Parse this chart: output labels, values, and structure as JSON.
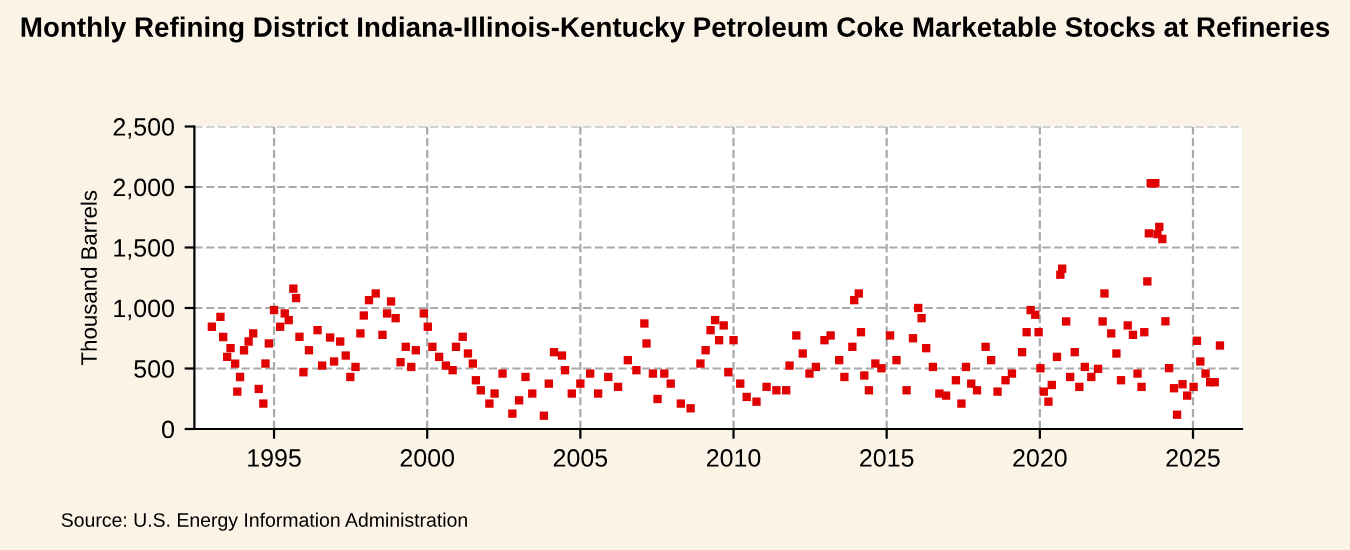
{
  "chart_data": {
    "type": "scatter",
    "title": "Monthly Refining District Indiana-Illinois-Kentucky Petroleum Coke Marketable Stocks at Refineries",
    "ylabel": "Thousand Barrels",
    "annotations": [
      "Source: U.S. Energy Information Administration"
    ],
    "x": [
      1992.97,
      1993.25,
      1993.34,
      1993.47,
      1993.58,
      1993.73,
      1993.8,
      1993.89,
      1994.02,
      1994.17,
      1994.32,
      1994.5,
      1994.65,
      1994.72,
      1994.83,
      1995.0,
      1995.2,
      1995.35,
      1995.48,
      1995.63,
      1995.72,
      1995.83,
      1995.96,
      1996.14,
      1996.42,
      1996.57,
      1996.83,
      1996.96,
      1997.16,
      1997.34,
      1997.49,
      1997.66,
      1997.82,
      1997.93,
      1998.1,
      1998.32,
      1998.54,
      1998.69,
      1998.82,
      1998.97,
      1999.13,
      1999.3,
      1999.48,
      1999.63,
      1999.89,
      2000.02,
      2000.17,
      2000.39,
      2000.61,
      2000.83,
      2000.94,
      2001.16,
      2001.33,
      2001.49,
      2001.59,
      2001.75,
      2002.03,
      2002.2,
      2002.46,
      2002.78,
      2003.0,
      2003.21,
      2003.43,
      2003.81,
      2003.97,
      2004.14,
      2004.4,
      2004.5,
      2004.72,
      2005.0,
      2005.32,
      2005.58,
      2005.91,
      2006.23,
      2006.55,
      2006.83,
      2007.09,
      2007.16,
      2007.37,
      2007.52,
      2007.74,
      2007.95,
      2008.28,
      2008.6,
      2008.92,
      2009.09,
      2009.25,
      2009.4,
      2009.53,
      2009.68,
      2009.83,
      2010.0,
      2010.22,
      2010.43,
      2010.75,
      2011.08,
      2011.4,
      2011.72,
      2011.83,
      2012.05,
      2012.26,
      2012.48,
      2012.69,
      2012.97,
      2013.17,
      2013.45,
      2013.62,
      2013.88,
      2013.94,
      2014.09,
      2014.16,
      2014.27,
      2014.42,
      2014.63,
      2014.83,
      2015.11,
      2015.32,
      2015.65,
      2015.86,
      2016.03,
      2016.14,
      2016.29,
      2016.51,
      2016.72,
      2016.94,
      2017.26,
      2017.44,
      2017.59,
      2017.76,
      2017.95,
      2018.23,
      2018.41,
      2018.62,
      2018.88,
      2019.09,
      2019.42,
      2019.57,
      2019.7,
      2019.85,
      2019.96,
      2020.02,
      2020.13,
      2020.28,
      2020.39,
      2020.56,
      2020.67,
      2020.73,
      2020.86,
      2020.99,
      2021.14,
      2021.29,
      2021.47,
      2021.68,
      2021.9,
      2022.05,
      2022.11,
      2022.33,
      2022.5,
      2022.65,
      2022.87,
      2023.04,
      2023.19,
      2023.32,
      2023.41,
      2023.51,
      2023.56,
      2023.62,
      2023.77,
      2023.84,
      2023.9,
      2024.0,
      2024.1,
      2024.22,
      2024.38,
      2024.48,
      2024.66,
      2024.81,
      2025.02,
      2025.13,
      2025.24,
      2025.41,
      2025.56,
      2025.71,
      2025.88
    ],
    "values": [
      845,
      927,
      760,
      596,
      668,
      540,
      309,
      430,
      651,
      723,
      790,
      331,
      210,
      541,
      707,
      983,
      845,
      955,
      900,
      1160,
      1082,
      762,
      469,
      651,
      817,
      524,
      756,
      558,
      723,
      607,
      430,
      513,
      790,
      938,
      1065,
      1120,
      778,
      955,
      1054,
      916,
      552,
      679,
      513,
      651,
      955,
      845,
      679,
      596,
      524,
      486,
      679,
      762,
      624,
      541,
      403,
      320,
      210,
      293,
      458,
      127,
      237,
      430,
      293,
      110,
      375,
      635,
      607,
      486,
      293,
      375,
      458,
      293,
      430,
      348,
      569,
      486,
      872,
      707,
      458,
      248,
      458,
      375,
      210,
      171,
      541,
      651,
      817,
      900,
      734,
      856,
      469,
      734,
      375,
      265,
      226,
      348,
      320,
      320,
      524,
      773,
      624,
      458,
      513,
      734,
      773,
      569,
      430,
      679,
      1065,
      1120,
      800,
      442,
      320,
      541,
      502,
      773,
      569,
      320,
      750,
      1000,
      916,
      668,
      513,
      293,
      276,
      403,
      210,
      513,
      375,
      320,
      679,
      569,
      309,
      403,
      458,
      635,
      800,
      983,
      944,
      800,
      502,
      309,
      226,
      364,
      596,
      1275,
      1325,
      889,
      430,
      635,
      348,
      513,
      430,
      497,
      889,
      1120,
      790,
      624,
      403,
      856,
      778,
      458,
      348,
      800,
      1220,
      1617,
      2031,
      2031,
      1610,
      1670,
      1570,
      890,
      503,
      337,
      118,
      370,
      276,
      348,
      729,
      558,
      458,
      387,
      387,
      690
    ],
    "color": "#e00000",
    "marker": "square",
    "xlim": [
      1992.4,
      2026.6
    ],
    "xticks": [
      1995,
      2000,
      2005,
      2010,
      2015,
      2020,
      2025
    ],
    "ylim": [
      0,
      2500
    ],
    "yticks": [
      {
        "value": 0,
        "label": "0"
      },
      {
        "value": 500,
        "label": "500"
      },
      {
        "value": 1000,
        "label": "1,000"
      },
      {
        "value": 1500,
        "label": "1,500"
      },
      {
        "value": 2000,
        "label": "2,000"
      },
      {
        "value": 2500,
        "label": "2,500"
      }
    ],
    "grid": true,
    "line_style": "dashed"
  }
}
